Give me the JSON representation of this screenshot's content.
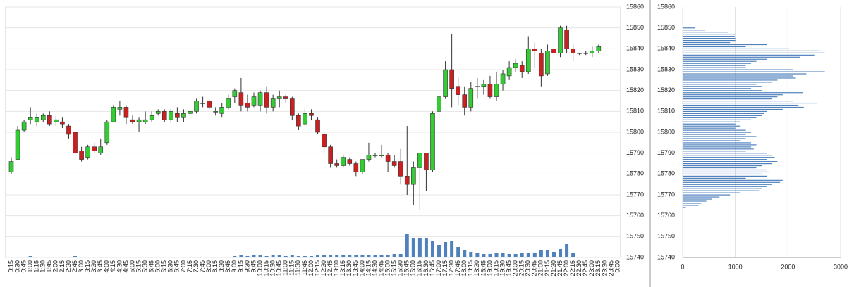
{
  "chart_data": [
    {
      "type": "candlestick",
      "categories": [
        "0:15",
        "0:30",
        "0:45",
        "1:00",
        "1:15",
        "1:30",
        "1:45",
        "2:00",
        "2:15",
        "2:30",
        "2:45",
        "3:00",
        "3:15",
        "3:30",
        "3:45",
        "4:00",
        "4:15",
        "4:30",
        "4:45",
        "5:00",
        "5:15",
        "5:30",
        "5:45",
        "6:00",
        "6:15",
        "6:30",
        "6:45",
        "7:00",
        "7:15",
        "7:30",
        "7:45",
        "8:00",
        "8:15",
        "8:30",
        "8:45",
        "9:00",
        "9:15",
        "9:30",
        "9:45",
        "10:00",
        "10:15",
        "10:30",
        "10:45",
        "11:00",
        "11:15",
        "11:30",
        "11:45",
        "12:00",
        "12:15",
        "12:30",
        "12:45",
        "13:00",
        "13:15",
        "13:30",
        "13:45",
        "14:00",
        "14:15",
        "14:30",
        "14:45",
        "15:00",
        "15:15",
        "15:30",
        "15:45",
        "16:00",
        "16:15",
        "16:30",
        "16:45",
        "17:00",
        "17:15",
        "17:30",
        "17:45",
        "18:00",
        "18:15",
        "18:30",
        "18:45",
        "19:00",
        "19:15",
        "19:30",
        "19:45",
        "20:00",
        "20:15",
        "20:30",
        "20:45",
        "21:00",
        "21:15",
        "21:30",
        "21:45",
        "22:00",
        "22:15",
        "22:30",
        "22:45",
        "23:00",
        "23:15",
        "23:30",
        "23:45",
        "0:00"
      ],
      "open": [
        15781,
        15787,
        15801,
        15806,
        15805,
        15806,
        15808,
        15805,
        15805,
        15803,
        15800,
        15791,
        15788,
        15793,
        15790,
        15795,
        15805,
        15811,
        15812,
        15806,
        15805,
        15805,
        15806,
        15809,
        15810,
        15806,
        15809,
        15807,
        15809,
        15810,
        15814,
        15815,
        15810,
        15809,
        15812,
        15817,
        15819,
        15814,
        15813,
        15813,
        15819,
        15812,
        15816,
        15817,
        15816,
        15808,
        15804,
        15809,
        15806,
        15799,
        15793,
        15785,
        15784,
        15787,
        15785,
        15781,
        15787,
        15789,
        15789,
        15789,
        15786,
        15786,
        15779,
        15775,
        15783,
        15790,
        15782,
        15810,
        15817,
        15830,
        15822,
        15818,
        15812,
        15822,
        15822,
        15823,
        15817,
        15823,
        15827,
        15831,
        15832,
        15829,
        15840,
        15838,
        15828,
        15840,
        15838,
        15849,
        15840,
        15838,
        15838,
        15838,
        15839,
        null,
        null,
        null
      ],
      "high": [
        15788,
        15803,
        15806,
        15812,
        15809,
        15809,
        15810,
        15808,
        15807,
        15804,
        15801,
        15793,
        15794,
        15795,
        15797,
        15806,
        15813,
        15815,
        15813,
        15808,
        15807,
        15810,
        15810,
        15811,
        15811,
        15811,
        15812,
        15811,
        15811,
        15816,
        15817,
        15816,
        15812,
        15814,
        15818,
        15821,
        15826,
        15818,
        15819,
        15820,
        15822,
        15818,
        15820,
        15818,
        15817,
        15809,
        15812,
        15811,
        15807,
        15800,
        15794,
        15787,
        15789,
        15788,
        15786,
        15787,
        15795,
        15790,
        15794,
        15790,
        15789,
        15792,
        15803,
        15786,
        15790,
        15790,
        15810,
        15819,
        15834,
        15847,
        15826,
        15822,
        15824,
        15826,
        15825,
        15827,
        15829,
        15830,
        15834,
        15835,
        15834,
        15846,
        15843,
        15840,
        15842,
        15843,
        15851,
        15851,
        15842,
        15838,
        15839,
        15841,
        15842,
        null,
        null,
        null
      ],
      "low": [
        15780,
        15787,
        15800,
        15804,
        15803,
        15805,
        15803,
        15803,
        15802,
        15797,
        15787,
        15786,
        15787,
        15790,
        15789,
        15794,
        15805,
        15808,
        15804,
        15804,
        15800,
        15804,
        15805,
        15808,
        15805,
        15805,
        15805,
        15805,
        15808,
        15809,
        15812,
        15811,
        15808,
        15807,
        15811,
        15814,
        15810,
        15810,
        15812,
        15810,
        15809,
        15810,
        15812,
        15814,
        15806,
        15801,
        15803,
        15806,
        15799,
        15790,
        15783,
        15783,
        15783,
        15784,
        15779,
        15780,
        15786,
        15788,
        15788,
        15781,
        15783,
        15775,
        15770,
        15765,
        15763,
        15772,
        15781,
        15805,
        15816,
        15812,
        15813,
        15808,
        15810,
        15816,
        15818,
        15816,
        15815,
        15820,
        15825,
        15829,
        15826,
        15828,
        15831,
        15822,
        15827,
        15832,
        15836,
        15838,
        15834,
        15837,
        15837,
        15836,
        15838,
        null,
        null,
        null
      ],
      "close": [
        15786,
        15801,
        15805,
        15807,
        15807,
        15808,
        15804,
        15806,
        15804,
        15799,
        15790,
        15787,
        15793,
        15791,
        15793,
        15805,
        15812,
        15812,
        15807,
        15805,
        15806,
        15806,
        15808,
        15810,
        15806,
        15810,
        15807,
        15809,
        15810,
        15815,
        15814,
        15812,
        15810,
        15812,
        15816,
        15820,
        15813,
        15812,
        15817,
        15819,
        15812,
        15816,
        15817,
        15816,
        15808,
        15803,
        15809,
        15808,
        15800,
        15793,
        15785,
        15784,
        15788,
        15785,
        15781,
        15787,
        15789,
        15789,
        15789,
        15786,
        15784,
        15779,
        15775,
        15783,
        15790,
        15782,
        15809,
        15817,
        15830,
        15821,
        15818,
        15812,
        15821,
        15822,
        15823,
        15817,
        15823,
        15828,
        15831,
        15833,
        15829,
        15840,
        15839,
        15827,
        15839,
        15838,
        15850,
        15840,
        15838,
        15838,
        15838,
        15839,
        15841,
        null,
        null,
        null
      ],
      "volume": [
        1,
        1,
        1,
        2,
        1,
        1,
        1,
        1,
        1,
        1,
        2,
        1,
        1,
        1,
        1,
        1,
        1,
        1,
        1,
        1,
        1,
        1,
        1,
        1,
        1,
        1,
        1,
        1,
        1,
        1,
        1,
        1,
        1,
        1,
        1,
        2,
        4,
        2,
        3,
        3,
        2,
        3,
        3,
        2,
        3,
        2,
        2,
        2,
        3,
        4,
        4,
        3,
        3,
        4,
        3,
        3,
        4,
        3,
        4,
        4,
        5,
        5,
        34,
        27,
        28,
        28,
        24,
        18,
        22,
        24,
        15,
        11,
        8,
        6,
        5,
        5,
        7,
        7,
        5,
        5,
        6,
        7,
        7,
        10,
        11,
        8,
        12,
        19,
        6,
        1,
        1,
        1,
        1,
        null,
        null,
        null
      ],
      "up_color": "#33cc33",
      "down_color": "#cc1f1f",
      "volume_color": "#4f81bd",
      "ylim": [
        15740,
        15860
      ],
      "yticks": [
        15740,
        15750,
        15760,
        15770,
        15780,
        15790,
        15800,
        15810,
        15820,
        15830,
        15840,
        15850,
        15860
      ],
      "grid": true
    },
    {
      "type": "hbar",
      "y": [
        15850,
        15849,
        15848,
        15847,
        15846,
        15845,
        15844,
        15843,
        15842,
        15841,
        15840,
        15839,
        15838,
        15837,
        15836,
        15835,
        15834,
        15833,
        15832,
        15831,
        15830,
        15829,
        15828,
        15827,
        15826,
        15825,
        15824,
        15823,
        15822,
        15821,
        15820,
        15819,
        15818,
        15817,
        15816,
        15815,
        15814,
        15813,
        15812,
        15811,
        15810,
        15809,
        15808,
        15807,
        15806,
        15805,
        15804,
        15803,
        15802,
        15801,
        15800,
        15799,
        15798,
        15797,
        15796,
        15795,
        15794,
        15793,
        15792,
        15791,
        15790,
        15789,
        15788,
        15787,
        15786,
        15785,
        15784,
        15783,
        15782,
        15781,
        15780,
        15779,
        15778,
        15777,
        15776,
        15775,
        15774,
        15773,
        15772,
        15771,
        15770,
        15769,
        15768,
        15767,
        15766,
        15765,
        15764
      ],
      "values": [
        230,
        430,
        870,
        1000,
        990,
        1000,
        1000,
        900,
        1600,
        1200,
        2020,
        2600,
        2700,
        2500,
        2230,
        1600,
        1400,
        1300,
        1200,
        1200,
        2100,
        2700,
        2350,
        2100,
        2150,
        1800,
        1700,
        1400,
        1500,
        1300,
        1500,
        2280,
        1900,
        1800,
        1700,
        2100,
        2550,
        2200,
        2300,
        1900,
        1600,
        1550,
        1500,
        1400,
        1300,
        1100,
        1000,
        1100,
        1000,
        1200,
        1300,
        1200,
        1400,
        1200,
        1100,
        1300,
        1400,
        1300,
        1350,
        1200,
        1600,
        1700,
        1750,
        1600,
        1800,
        1700,
        1500,
        1400,
        1600,
        1650,
        1500,
        1600,
        1200,
        1900,
        1850,
        1700,
        1600,
        1500,
        1450,
        1100,
        900,
        700,
        550,
        450,
        350,
        300,
        60
      ],
      "color": "#4f81bd",
      "ylim": [
        15740,
        15860
      ],
      "yticks": [
        15740,
        15750,
        15760,
        15770,
        15780,
        15790,
        15800,
        15810,
        15820,
        15830,
        15840,
        15850,
        15860
      ],
      "xlim": [
        0,
        3000
      ],
      "xticks": [
        0,
        1000,
        2000,
        3000
      ],
      "grid": true
    }
  ]
}
